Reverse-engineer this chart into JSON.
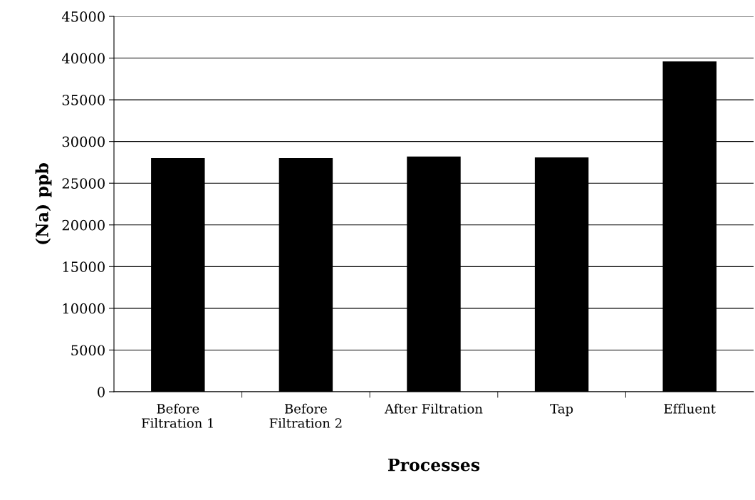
{
  "chart_data": {
    "type": "bar",
    "xlabel": "Processes",
    "ylabel": "(Na) ppb",
    "categories": [
      "Before\nFiltration 1",
      "Before\nFiltration 2",
      "After Filtration",
      "Tap",
      "Effluent"
    ],
    "values": [
      28000,
      28000,
      28200,
      28100,
      39600
    ],
    "color": "#000000",
    "ylim": [
      0,
      45000
    ],
    "yticks": [
      0,
      5000,
      10000,
      15000,
      20000,
      25000,
      30000,
      35000,
      40000,
      45000
    ],
    "grid": "y",
    "legend": false
  }
}
